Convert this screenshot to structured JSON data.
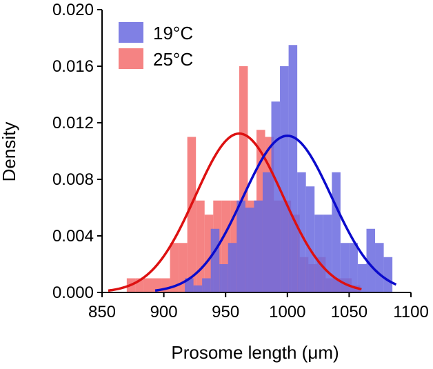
{
  "chart_data": {
    "type": "histogram",
    "title": "",
    "xlabel": "Prosome length (μm)",
    "ylabel": "Density",
    "xlim": [
      850,
      1100
    ],
    "ylim": [
      0,
      0.02
    ],
    "x_ticks": [
      "850",
      "900",
      "950",
      "1000",
      "1050",
      "1100"
    ],
    "y_ticks": [
      "0.000",
      "0.004",
      "0.008",
      "0.012",
      "0.016",
      "0.020"
    ],
    "bin_width": 7,
    "grid": false,
    "legend_position": "top-left",
    "series": [
      {
        "name": "25°C",
        "color": "#f25a5a",
        "opacity": 0.75,
        "bins": [
          {
            "start": 870,
            "density": 0.001
          },
          {
            "start": 877,
            "density": 0.001
          },
          {
            "start": 884,
            "density": 0.001
          },
          {
            "start": 891,
            "density": 0.001
          },
          {
            "start": 898,
            "density": 0.001
          },
          {
            "start": 905,
            "density": 0.0035
          },
          {
            "start": 912,
            "density": 0.0035
          },
          {
            "start": 919,
            "density": 0.011
          },
          {
            "start": 926,
            "density": 0.0065
          },
          {
            "start": 933,
            "density": 0.0055
          },
          {
            "start": 940,
            "density": 0.0065
          },
          {
            "start": 947,
            "density": 0.0065
          },
          {
            "start": 954,
            "density": 0.0065
          },
          {
            "start": 961,
            "density": 0.016
          },
          {
            "start": 968,
            "density": 0.0065
          },
          {
            "start": 975,
            "density": 0.0115
          },
          {
            "start": 982,
            "density": 0.011
          },
          {
            "start": 989,
            "density": 0.0065
          },
          {
            "start": 996,
            "density": 0.0065
          },
          {
            "start": 1003,
            "density": 0.0055
          },
          {
            "start": 1010,
            "density": 0.0025
          },
          {
            "start": 1017,
            "density": 0.002
          },
          {
            "start": 1024,
            "density": 0.0025
          },
          {
            "start": 1031,
            "density": 0.001
          },
          {
            "start": 1038,
            "density": 0.001
          },
          {
            "start": 1045,
            "density": 0.001
          },
          {
            "start": 1052,
            "density": 0.0005
          }
        ],
        "fit": {
          "mean": 961,
          "sd": 35.5
        }
      },
      {
        "name": "19°C",
        "color": "#6a6adf",
        "opacity": 0.85,
        "bins": [
          {
            "start": 917,
            "density": 0.001
          },
          {
            "start": 924,
            "density": 0.0005
          },
          {
            "start": 931,
            "density": 0.001
          },
          {
            "start": 938,
            "density": 0.0045
          },
          {
            "start": 945,
            "density": 0.002
          },
          {
            "start": 952,
            "density": 0.0035
          },
          {
            "start": 959,
            "density": 0.0065
          },
          {
            "start": 966,
            "density": 0.006
          },
          {
            "start": 973,
            "density": 0.0065
          },
          {
            "start": 980,
            "density": 0.0085
          },
          {
            "start": 987,
            "density": 0.0135
          },
          {
            "start": 994,
            "density": 0.016
          },
          {
            "start": 1001,
            "density": 0.0175
          },
          {
            "start": 1008,
            "density": 0.0085
          },
          {
            "start": 1015,
            "density": 0.0075
          },
          {
            "start": 1022,
            "density": 0.0055
          },
          {
            "start": 1029,
            "density": 0.0055
          },
          {
            "start": 1036,
            "density": 0.0085
          },
          {
            "start": 1043,
            "density": 0.0035
          },
          {
            "start": 1050,
            "density": 0.0035
          },
          {
            "start": 1057,
            "density": 0.002
          },
          {
            "start": 1064,
            "density": 0.0045
          },
          {
            "start": 1071,
            "density": 0.0035
          },
          {
            "start": 1078,
            "density": 0.0025
          }
        ],
        "fit": {
          "mean": 1000,
          "sd": 36
        }
      }
    ]
  }
}
